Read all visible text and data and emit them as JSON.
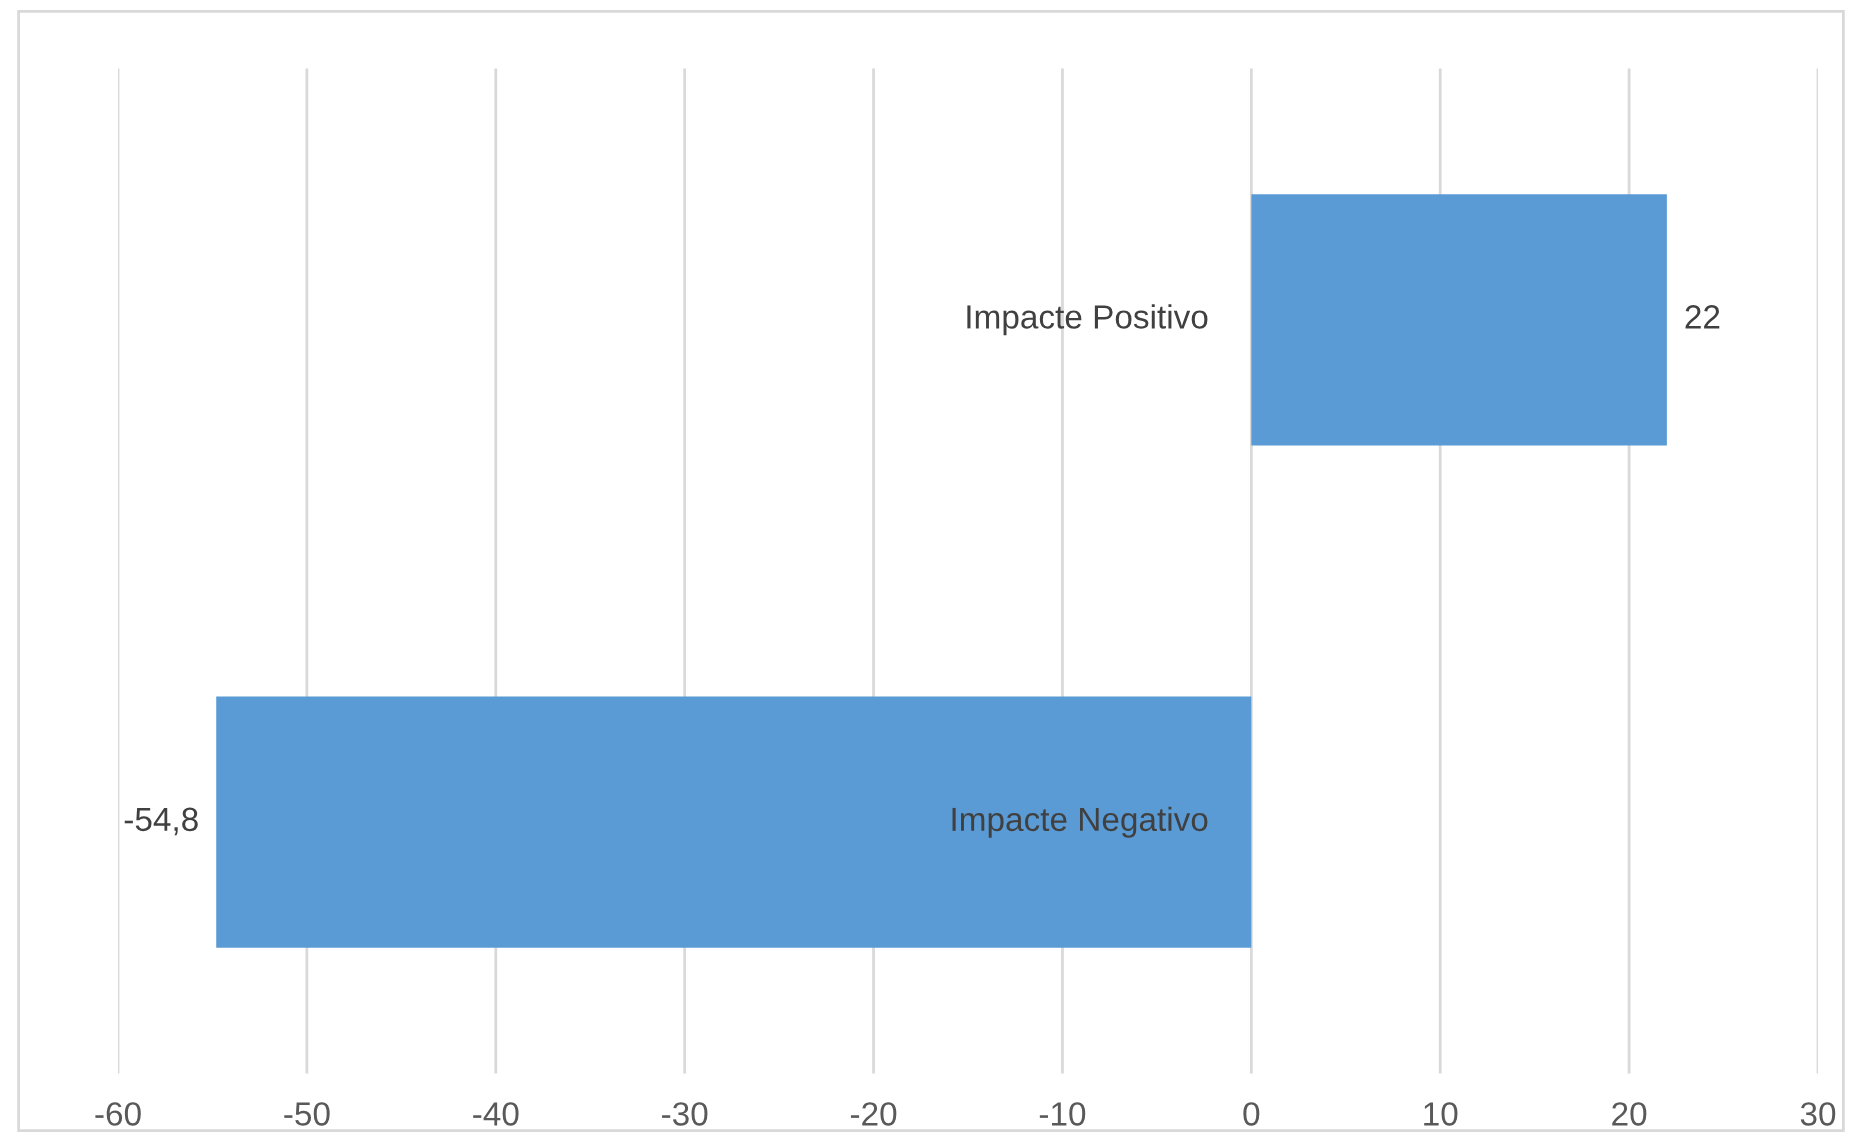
{
  "chart_data": {
    "type": "bar",
    "orientation": "horizontal",
    "categories": [
      "Impacte Positivo",
      "Impacte Negativo"
    ],
    "values": [
      22,
      -54.8
    ],
    "value_labels": [
      "22",
      "-54,8"
    ],
    "color": "#5b9bd5",
    "xlim": [
      -60,
      30
    ],
    "xticks": [
      -60,
      -50,
      -40,
      -30,
      -20,
      -10,
      0,
      10,
      20,
      30
    ],
    "grid": "x",
    "legend": false
  }
}
